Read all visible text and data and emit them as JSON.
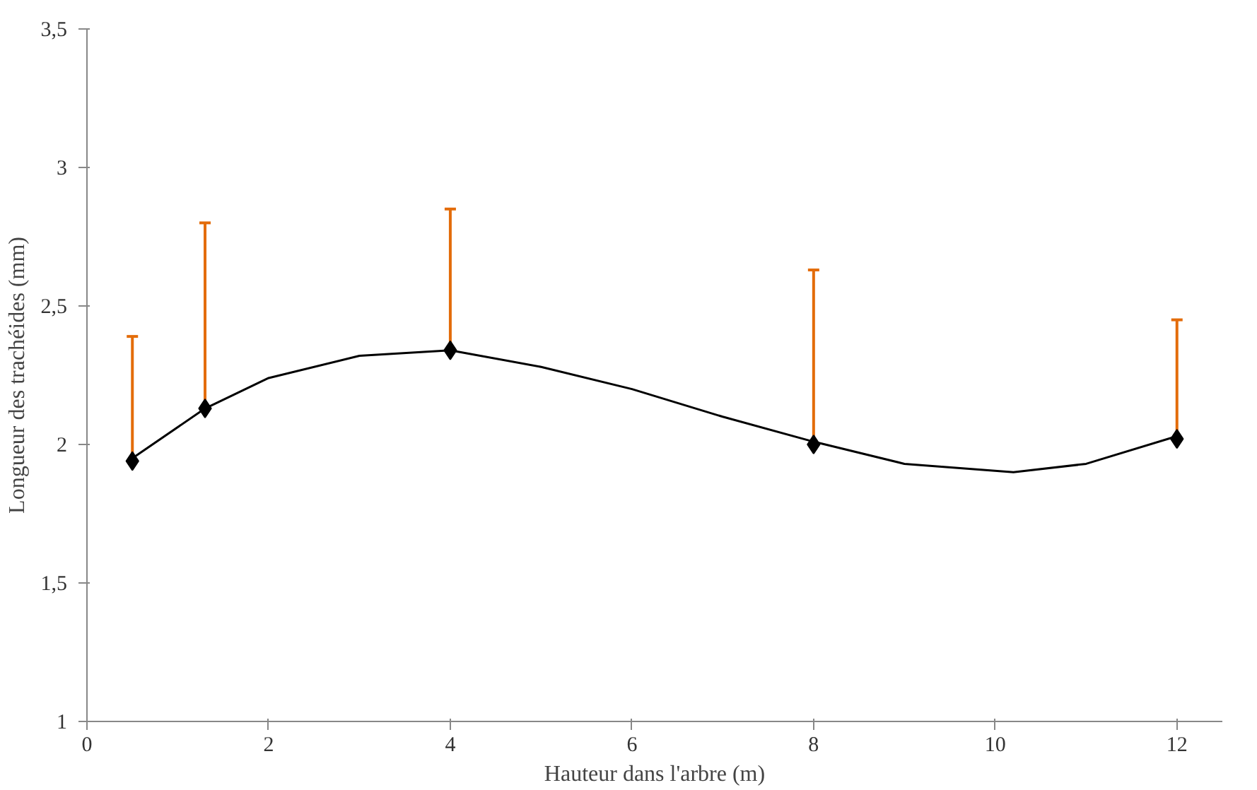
{
  "chart_data": {
    "type": "scatter",
    "xlabel": "Hauteur dans l'arbre (m)",
    "ylabel": "Longueur des trachéides (mm)",
    "x": [
      0.5,
      1.3,
      4,
      8,
      12
    ],
    "series": [
      {
        "color": "#000000",
        "values": [
          1.94,
          2.13,
          2.34,
          2.0,
          2.02
        ],
        "errors": [
          [
            1.94,
            2.39
          ],
          [
            2.13,
            2.8
          ],
          [
            2.34,
            2.85
          ],
          [
            2.0,
            2.63
          ],
          [
            2.02,
            2.45
          ]
        ],
        "marker": "diamond"
      },
      {
        "type": "line",
        "color": "#000000",
        "x": [
          0.5,
          1.3,
          2,
          3,
          4,
          5,
          6,
          7,
          8,
          9,
          10.2,
          11,
          12
        ],
        "values": [
          1.95,
          2.13,
          2.24,
          2.32,
          2.34,
          2.28,
          2.2,
          2.1,
          2.01,
          1.93,
          1.9,
          1.93,
          2.03
        ],
        "marker": "none",
        "line_style": "solid"
      }
    ],
    "xlim": [
      0,
      12.5
    ],
    "xticks": [
      0,
      2,
      4,
      6,
      8,
      10,
      12
    ],
    "ylim": [
      1,
      3.5
    ],
    "yticks": [
      1,
      {
        "value": 1.5,
        "label": "1,5"
      },
      2,
      {
        "value": 2.5,
        "label": "2,5"
      },
      3,
      {
        "value": 3.5,
        "label": "3,5"
      }
    ],
    "grid": false
  }
}
